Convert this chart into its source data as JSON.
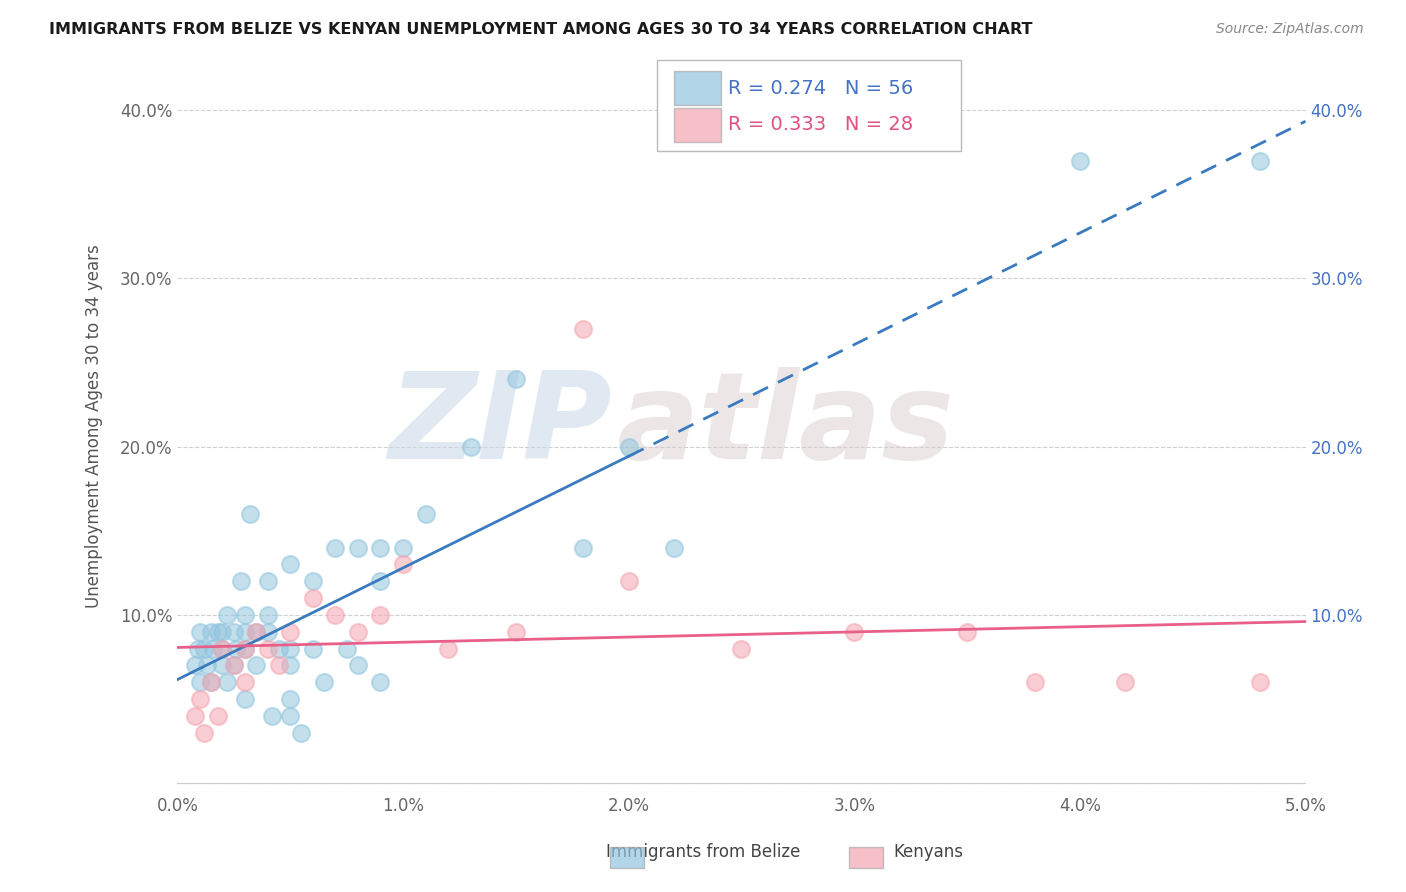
{
  "title": "IMMIGRANTS FROM BELIZE VS KENYAN UNEMPLOYMENT AMONG AGES 30 TO 34 YEARS CORRELATION CHART",
  "source": "Source: ZipAtlas.com",
  "ylabel": "Unemployment Among Ages 30 to 34 years",
  "legend_label_blue": "Immigrants from Belize",
  "legend_label_pink": "Kenyans",
  "legend_r_blue": "R = 0.274",
  "legend_n_blue": "N = 56",
  "legend_r_pink": "R = 0.333",
  "legend_n_pink": "N = 28",
  "xlim": [
    0.0,
    0.05
  ],
  "ylim": [
    -0.005,
    0.43
  ],
  "xticks": [
    0.0,
    0.01,
    0.02,
    0.03,
    0.04,
    0.05
  ],
  "yticks": [
    0.0,
    0.1,
    0.2,
    0.3,
    0.4
  ],
  "xticklabels": [
    "0.0%",
    "1.0%",
    "2.0%",
    "3.0%",
    "4.0%",
    "5.0%"
  ],
  "yticklabels_left": [
    "",
    "10.0%",
    "20.0%",
    "30.0%",
    "40.0%"
  ],
  "yticklabels_right": [
    "",
    "10.0%",
    "20.0%",
    "30.0%",
    "40.0%"
  ],
  "blue_color": "#92c5de",
  "pink_color": "#f4a5b0",
  "trend_blue_color": "#3a7bbf",
  "trend_pink_color": "#e8608a",
  "blue_scatter_x": [
    0.0008,
    0.0009,
    0.001,
    0.001,
    0.0012,
    0.0013,
    0.0015,
    0.0015,
    0.0016,
    0.0018,
    0.002,
    0.002,
    0.002,
    0.0022,
    0.0022,
    0.0025,
    0.0025,
    0.0026,
    0.0028,
    0.003,
    0.003,
    0.003,
    0.003,
    0.0032,
    0.0035,
    0.0035,
    0.004,
    0.004,
    0.004,
    0.0042,
    0.0045,
    0.005,
    0.005,
    0.005,
    0.005,
    0.005,
    0.0055,
    0.006,
    0.006,
    0.0065,
    0.007,
    0.0075,
    0.008,
    0.008,
    0.009,
    0.009,
    0.009,
    0.01,
    0.011,
    0.013,
    0.015,
    0.018,
    0.02,
    0.022,
    0.04,
    0.048
  ],
  "blue_scatter_y": [
    0.07,
    0.08,
    0.09,
    0.06,
    0.08,
    0.07,
    0.09,
    0.06,
    0.08,
    0.09,
    0.09,
    0.08,
    0.07,
    0.1,
    0.06,
    0.09,
    0.07,
    0.08,
    0.12,
    0.1,
    0.09,
    0.08,
    0.05,
    0.16,
    0.09,
    0.07,
    0.12,
    0.1,
    0.09,
    0.04,
    0.08,
    0.08,
    0.07,
    0.05,
    0.04,
    0.13,
    0.03,
    0.12,
    0.08,
    0.06,
    0.14,
    0.08,
    0.14,
    0.07,
    0.14,
    0.12,
    0.06,
    0.14,
    0.16,
    0.2,
    0.24,
    0.14,
    0.2,
    0.14,
    0.37,
    0.37
  ],
  "pink_scatter_x": [
    0.0008,
    0.001,
    0.0012,
    0.0015,
    0.0018,
    0.002,
    0.0025,
    0.003,
    0.003,
    0.0035,
    0.004,
    0.0045,
    0.005,
    0.006,
    0.007,
    0.008,
    0.009,
    0.01,
    0.012,
    0.015,
    0.018,
    0.02,
    0.025,
    0.03,
    0.035,
    0.038,
    0.042,
    0.048
  ],
  "pink_scatter_y": [
    0.04,
    0.05,
    0.03,
    0.06,
    0.04,
    0.08,
    0.07,
    0.08,
    0.06,
    0.09,
    0.08,
    0.07,
    0.09,
    0.11,
    0.1,
    0.09,
    0.1,
    0.13,
    0.08,
    0.09,
    0.27,
    0.12,
    0.08,
    0.09,
    0.09,
    0.06,
    0.06,
    0.06
  ],
  "watermark_zip": "ZIP",
  "watermark_atlas": "atlas",
  "background_color": "#ffffff",
  "grid_color": "#d0d0d0",
  "trend_blue_solid_end": 0.02,
  "trend_blue_dash_start": 0.02,
  "trend_blue_dash_end": 0.05
}
